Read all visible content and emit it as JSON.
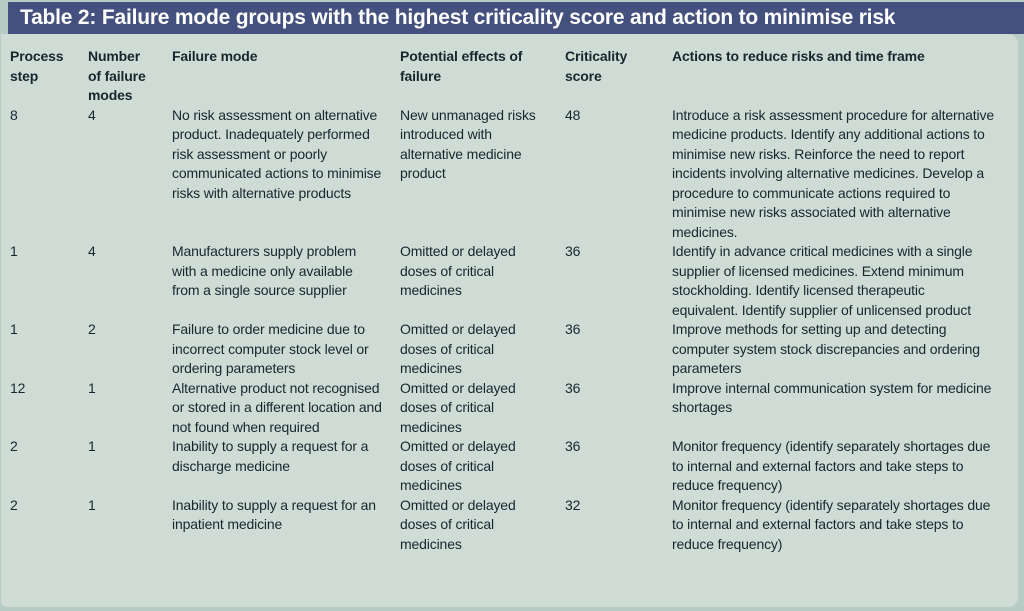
{
  "title": "Table 2: Failure mode groups with the highest criticality score and action to minimise risk",
  "colors": {
    "title_bar": "#44517e",
    "title_text": "#ffffff",
    "panel_background": "#cfdcd5",
    "outer_background": "#b7ccc4",
    "body_text": "#19262e"
  },
  "table": {
    "columns": [
      {
        "label": "Process step"
      },
      {
        "label": "Number of failure modes"
      },
      {
        "label": "Failure mode"
      },
      {
        "label": "Potential effects of failure"
      },
      {
        "label": "Criticality score"
      },
      {
        "label": "Actions to reduce risks and time frame"
      }
    ],
    "rows": [
      {
        "process_step": "8",
        "number_of_failure_modes": "4",
        "failure_mode": "No risk assessment on alternative product. Inadequately performed risk assessment or poorly communicated actions to minimise risks with alternative products",
        "potential_effects": "New unmanaged risks introduced with alternative medicine product",
        "criticality_score": "48",
        "actions": "Introduce a risk assessment procedure for alternative medicine products. Identify any additional actions to minimise new risks. Reinforce the need to report incidents involving alternative medicines. Develop a procedure to communicate actions required to minimise new risks associated with alternative medicines."
      },
      {
        "process_step": "1",
        "number_of_failure_modes": "4",
        "failure_mode": "Manufacturers supply problem with a medicine only available from a single source supplier",
        "potential_effects": "Omitted or delayed doses of critical medicines",
        "criticality_score": "36",
        "actions": "Identify in advance critical medicines with a single supplier of licensed medicines. Extend minimum stockholding. Identify licensed therapeutic equivalent. Identify supplier of unlicensed product"
      },
      {
        "process_step": "1",
        "number_of_failure_modes": "2",
        "failure_mode": "Failure to order medicine due to incorrect computer stock level or ordering parameters",
        "potential_effects": "Omitted or delayed doses of critical medicines",
        "criticality_score": "36",
        "actions": "Improve methods for setting up and detecting computer system stock discrepancies and ordering parameters"
      },
      {
        "process_step": "12",
        "number_of_failure_modes": "1",
        "failure_mode": "Alternative product not recognised or stored in a different location and not found when required",
        "potential_effects": "Omitted or delayed doses of critical medicines",
        "criticality_score": "36",
        "actions": "Improve internal communication system for medicine shortages"
      },
      {
        "process_step": "2",
        "number_of_failure_modes": "1",
        "failure_mode": "Inability to supply a request for a discharge medicine",
        "potential_effects": "Omitted or delayed doses of critical medicines",
        "criticality_score": "36",
        "actions": "Monitor frequency (identify separately shortages due to internal and external factors and take steps to reduce frequency)"
      },
      {
        "process_step": "2",
        "number_of_failure_modes": "1",
        "failure_mode": "Inability to supply a request for an inpatient medicine",
        "potential_effects": "Omitted or delayed doses of critical medicines",
        "criticality_score": "32",
        "actions": "Monitor frequency (identify separately shortages due to internal and external factors and take steps to reduce frequency)"
      }
    ]
  }
}
